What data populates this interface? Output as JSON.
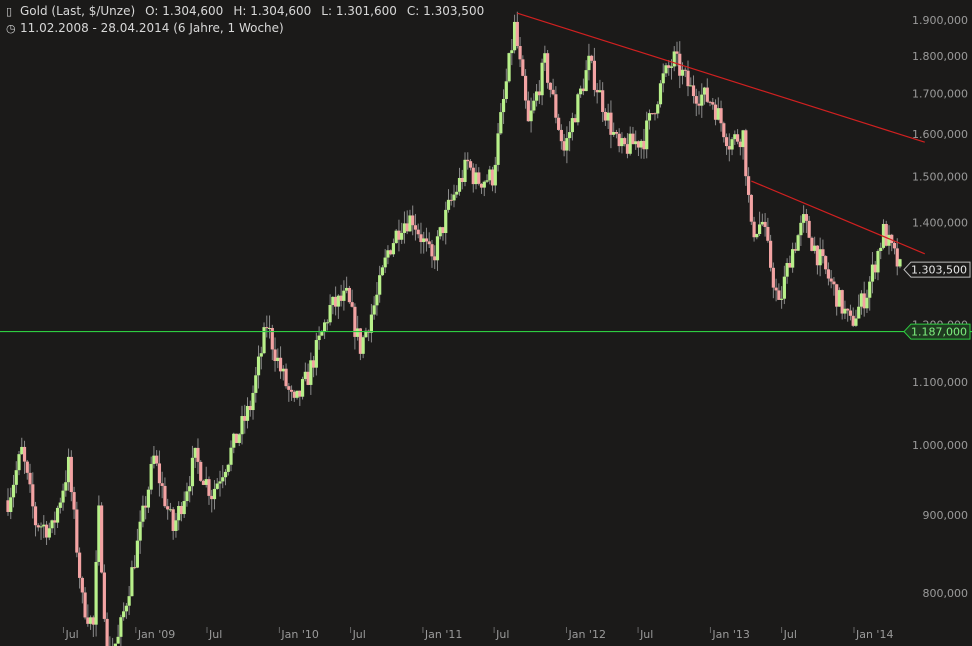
{
  "header": {
    "title": "Gold (Last, $/Unze)",
    "open": "O: 1.304,600",
    "high": "H: 1.304,600",
    "low": "L: 1.301,600",
    "close": "C: 1.303,500",
    "period": "11.02.2008 - 28.04.2014 (6 Jahre, 1 Woche)",
    "title_icon": "candlestick-chart-icon",
    "period_icon": "clock-icon"
  },
  "colors": {
    "background": "#1b1a19",
    "up_candle": "#b8f08a",
    "down_candle": "#f3a3a3",
    "trendline": "#d02020",
    "support_line": "#2ecc40",
    "axis_text": "#9a9a9a"
  },
  "chart_data": {
    "type": "candlestick",
    "title": "Gold (Last, $/Unze)",
    "scale": "log",
    "interval": "1 Woche",
    "date_range": [
      "2008-02-11",
      "2014-04-28"
    ],
    "ylim": [
      745,
      1935
    ],
    "y_ticks": [
      {
        "value": 800,
        "label": "800,000"
      },
      {
        "value": 900,
        "label": "900,000"
      },
      {
        "value": 1000,
        "label": "1.000,000"
      },
      {
        "value": 1100,
        "label": "1.100,000"
      },
      {
        "value": 1200,
        "label": "1.200,000"
      },
      {
        "value": 1300,
        "label": "1.300,000"
      },
      {
        "value": 1400,
        "label": "1.400,000"
      },
      {
        "value": 1500,
        "label": "1.500,000"
      },
      {
        "value": 1600,
        "label": "1.600,000"
      },
      {
        "value": 1700,
        "label": "1.700,000"
      },
      {
        "value": 1800,
        "label": "1.800,000"
      },
      {
        "value": 1900,
        "label": "1.900,000"
      }
    ],
    "x_ticks": [
      {
        "date": "2008-07-01",
        "label": "Jul"
      },
      {
        "date": "2009-01-01",
        "label": "Jan '09"
      },
      {
        "date": "2009-07-01",
        "label": "Jul"
      },
      {
        "date": "2010-01-01",
        "label": "Jan '10"
      },
      {
        "date": "2010-07-01",
        "label": "Jul"
      },
      {
        "date": "2011-01-01",
        "label": "Jan '11"
      },
      {
        "date": "2011-07-01",
        "label": "Jul"
      },
      {
        "date": "2012-01-01",
        "label": "Jan '12"
      },
      {
        "date": "2012-07-01",
        "label": "Jul"
      },
      {
        "date": "2013-01-01",
        "label": "Jan '13"
      },
      {
        "date": "2013-07-01",
        "label": "Jul"
      },
      {
        "date": "2014-01-01",
        "label": "Jan '14"
      }
    ],
    "price_path": [
      {
        "date": "2008-02-11",
        "close": 920
      },
      {
        "date": "2008-03-17",
        "close": 990
      },
      {
        "date": "2008-04-21",
        "close": 890
      },
      {
        "date": "2008-06-02",
        "close": 880
      },
      {
        "date": "2008-07-14",
        "close": 970
      },
      {
        "date": "2008-08-18",
        "close": 790
      },
      {
        "date": "2008-09-15",
        "close": 760
      },
      {
        "date": "2008-09-29",
        "close": 900
      },
      {
        "date": "2008-10-20",
        "close": 730
      },
      {
        "date": "2008-11-17",
        "close": 745
      },
      {
        "date": "2009-01-05",
        "close": 860
      },
      {
        "date": "2009-02-16",
        "close": 980
      },
      {
        "date": "2009-04-06",
        "close": 880
      },
      {
        "date": "2009-06-01",
        "close": 980
      },
      {
        "date": "2009-07-13",
        "close": 930
      },
      {
        "date": "2009-09-07",
        "close": 1000
      },
      {
        "date": "2009-10-19",
        "close": 1060
      },
      {
        "date": "2009-11-30",
        "close": 1200
      },
      {
        "date": "2010-01-04",
        "close": 1120
      },
      {
        "date": "2010-02-08",
        "close": 1060
      },
      {
        "date": "2010-03-15",
        "close": 1110
      },
      {
        "date": "2010-05-10",
        "close": 1230
      },
      {
        "date": "2010-06-21",
        "close": 1250
      },
      {
        "date": "2010-07-26",
        "close": 1160
      },
      {
        "date": "2010-09-06",
        "close": 1250
      },
      {
        "date": "2010-10-04",
        "close": 1340
      },
      {
        "date": "2010-11-08",
        "close": 1400
      },
      {
        "date": "2010-12-06",
        "close": 1410
      },
      {
        "date": "2011-01-24",
        "close": 1320
      },
      {
        "date": "2011-03-07",
        "close": 1430
      },
      {
        "date": "2011-04-25",
        "close": 1530
      },
      {
        "date": "2011-05-16",
        "close": 1490
      },
      {
        "date": "2011-06-27",
        "close": 1500
      },
      {
        "date": "2011-08-22",
        "close": 1880
      },
      {
        "date": "2011-09-26",
        "close": 1620
      },
      {
        "date": "2011-11-07",
        "close": 1780
      },
      {
        "date": "2011-12-26",
        "close": 1560
      },
      {
        "date": "2012-02-27",
        "close": 1780
      },
      {
        "date": "2012-05-14",
        "close": 1560
      },
      {
        "date": "2012-07-16",
        "close": 1590
      },
      {
        "date": "2012-09-03",
        "close": 1740
      },
      {
        "date": "2012-10-01",
        "close": 1790
      },
      {
        "date": "2012-11-12",
        "close": 1710
      },
      {
        "date": "2013-01-07",
        "close": 1680
      },
      {
        "date": "2013-02-18",
        "close": 1580
      },
      {
        "date": "2013-03-25",
        "close": 1600
      },
      {
        "date": "2013-04-15",
        "close": 1380
      },
      {
        "date": "2013-05-13",
        "close": 1400
      },
      {
        "date": "2013-06-24",
        "close": 1230
      },
      {
        "date": "2013-07-22",
        "close": 1330
      },
      {
        "date": "2013-08-26",
        "close": 1400
      },
      {
        "date": "2013-10-14",
        "close": 1310
      },
      {
        "date": "2013-12-23",
        "close": 1200
      },
      {
        "date": "2014-02-03",
        "close": 1260
      },
      {
        "date": "2014-03-17",
        "close": 1380
      },
      {
        "date": "2014-04-28",
        "close": 1303.5
      }
    ],
    "trendlines": [
      {
        "name": "long-term-resistance",
        "from": {
          "date": "2011-08-29",
          "price": 1920
        },
        "to": {
          "date": "2014-06-30",
          "price": 1580
        }
      },
      {
        "name": "short-term-resistance",
        "from": {
          "date": "2013-04-15",
          "price": 1490
        },
        "to": {
          "date": "2014-06-30",
          "price": 1335
        }
      }
    ],
    "horizontal_line": {
      "value": 1187,
      "label": "1.187,000"
    },
    "last_price": {
      "value": 1303.5,
      "label": "1.303,500"
    }
  }
}
